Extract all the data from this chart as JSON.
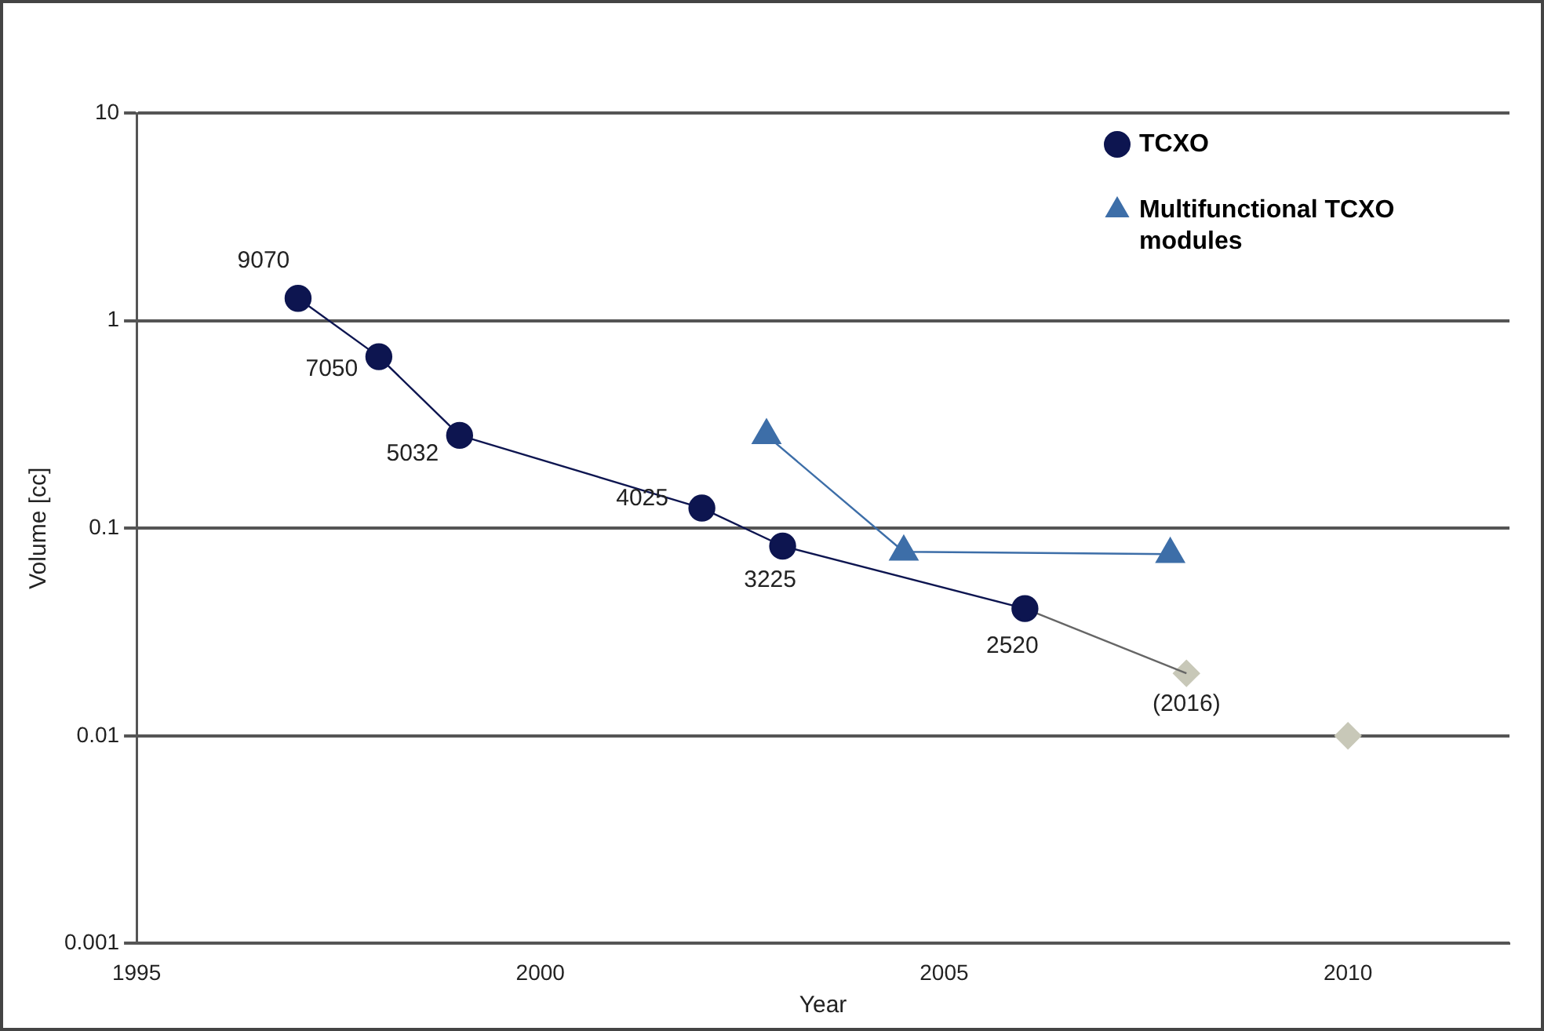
{
  "chart_data": {
    "type": "scatter",
    "xlabel": "Year",
    "ylabel": "Volume [cc]",
    "xlim": [
      1995,
      2012
    ],
    "xticks": [
      1995,
      2000,
      2005,
      2010
    ],
    "ylim": [
      0.001,
      10
    ],
    "yticks": [
      0.001,
      0.01,
      0.1,
      1,
      10
    ],
    "log": "y",
    "grid": "y",
    "legend": "top right",
    "series": [
      {
        "name": "TCXO",
        "type": "line",
        "marker": "circle",
        "color": "#0d1550",
        "x": [
          1997,
          1998,
          1999,
          2002,
          2003,
          2006
        ],
        "values": [
          1.28,
          0.67,
          0.28,
          0.125,
          0.082,
          0.041
        ]
      },
      {
        "name": "Multifunctional TCXO modules",
        "type": "line",
        "marker": "triangle",
        "color": "#3d6ea8",
        "x": [
          2002.8,
          2004.5,
          2007.8
        ],
        "values": [
          0.28,
          0.077,
          0.075
        ]
      },
      {
        "type": "line",
        "marker": "none",
        "color": "#666666",
        "x": [
          2006,
          2008
        ],
        "values": [
          0.041,
          0.02
        ]
      },
      {
        "type": "scatter",
        "marker": "diamond",
        "color": "#c8c8b8",
        "x": [
          2008,
          2010
        ],
        "values": [
          0.02,
          0.01
        ]
      }
    ],
    "annotations": [
      {
        "text": "9070",
        "x": 1997,
        "y": 1.28
      },
      {
        "text": "7050",
        "x": 1998,
        "y": 0.67
      },
      {
        "text": "5032",
        "x": 1999,
        "y": 0.28
      },
      {
        "text": "4025",
        "x": 2002,
        "y": 0.125
      },
      {
        "text": "3225",
        "x": 2003,
        "y": 0.082
      },
      {
        "text": "2520",
        "x": 2006,
        "y": 0.041
      },
      {
        "text": "(2016)",
        "x": 2008,
        "y": 0.02
      }
    ]
  }
}
